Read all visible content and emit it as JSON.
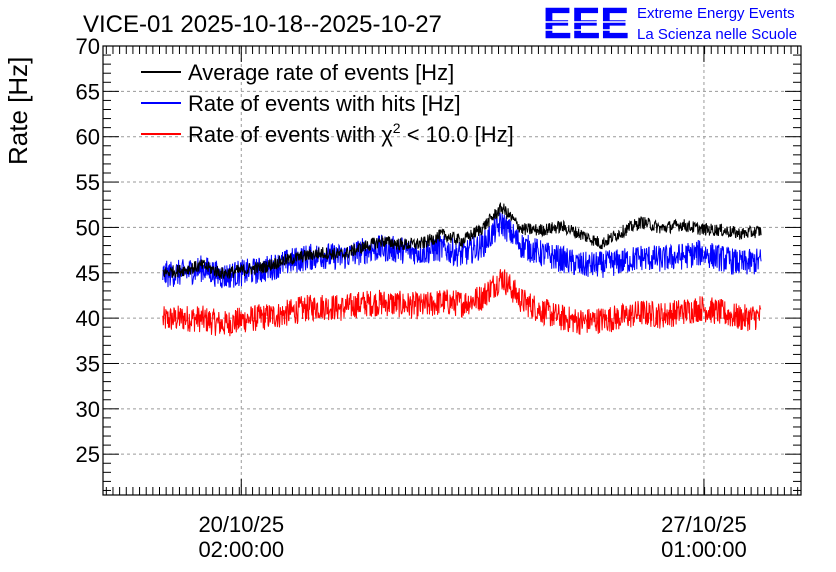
{
  "chart_data": {
    "type": "line",
    "title": "VICE-01 2025-10-18--2025-10-27",
    "xlabel": "",
    "ylabel": "Rate [Hz]",
    "ylim": [
      20.5,
      70
    ],
    "yticks": [
      25,
      30,
      35,
      40,
      45,
      50,
      55,
      60,
      65,
      70
    ],
    "x_range_days": [
      0,
      10.5
    ],
    "xticks": [
      {
        "day": 2.08,
        "date": "20/10/25",
        "time": "02:00:00"
      },
      {
        "day": 9.04,
        "date": "27/10/25",
        "time": "01:00:00"
      }
    ],
    "grid": true,
    "legend_position": "top-left",
    "legend": {
      "average": "Average rate of events [Hz]",
      "hits": "Rate of events with hits [Hz]",
      "chi_prefix": "Rate of events with ",
      "chi_symbol": "χ",
      "chi_sup": "2",
      "chi_suffix": " < 10.0 [Hz]"
    },
    "series": [
      {
        "name": "Average rate of events [Hz]",
        "color": "#000000",
        "x": [
          0.9,
          1.2,
          1.5,
          1.8,
          2.1,
          2.4,
          2.7,
          3.0,
          3.3,
          3.6,
          3.9,
          4.2,
          4.5,
          4.8,
          5.1,
          5.4,
          5.7,
          6.0,
          6.3,
          6.6,
          6.9,
          7.2,
          7.5,
          7.8,
          8.1,
          8.4,
          8.7,
          9.0,
          9.3,
          9.6,
          9.9
        ],
        "values": [
          45.0,
          45.3,
          45.8,
          44.9,
          45.3,
          45.6,
          46.3,
          46.8,
          47.2,
          47.0,
          47.8,
          48.5,
          48.1,
          48.2,
          49.2,
          48.5,
          49.9,
          52.2,
          49.8,
          49.7,
          50.1,
          49.2,
          48.2,
          49.5,
          50.6,
          49.9,
          50.3,
          49.8,
          49.7,
          49.3,
          49.6
        ],
        "noise": 0.7
      },
      {
        "name": "Rate of events with hits [Hz]",
        "color": "#0000ff",
        "x": [
          0.9,
          1.2,
          1.5,
          1.8,
          2.1,
          2.4,
          2.7,
          3.0,
          3.3,
          3.6,
          3.9,
          4.2,
          4.5,
          4.8,
          5.1,
          5.4,
          5.7,
          6.0,
          6.3,
          6.6,
          6.9,
          7.2,
          7.5,
          7.8,
          8.1,
          8.4,
          8.7,
          9.0,
          9.3,
          9.6,
          9.9
        ],
        "values": [
          44.8,
          45.0,
          45.5,
          44.6,
          45.0,
          45.3,
          46.0,
          46.6,
          46.9,
          46.7,
          47.4,
          47.7,
          47.5,
          47.3,
          47.7,
          47.0,
          48.0,
          50.5,
          48.0,
          47.1,
          46.5,
          45.8,
          45.9,
          46.2,
          46.7,
          46.5,
          46.8,
          47.2,
          46.6,
          46.0,
          46.3
        ],
        "noise": 1.5
      },
      {
        "name": "Rate of events with χ2 < 10.0 [Hz]",
        "color": "#ff0000",
        "x": [
          0.9,
          1.2,
          1.5,
          1.8,
          2.1,
          2.4,
          2.7,
          3.0,
          3.3,
          3.6,
          3.9,
          4.2,
          4.5,
          4.8,
          5.1,
          5.4,
          5.7,
          6.0,
          6.3,
          6.6,
          6.9,
          7.2,
          7.5,
          7.8,
          8.1,
          8.4,
          8.7,
          9.0,
          9.3,
          9.6,
          9.9
        ],
        "values": [
          39.8,
          40.0,
          39.9,
          39.3,
          39.8,
          40.1,
          40.4,
          41.0,
          41.3,
          41.1,
          41.6,
          41.7,
          41.5,
          41.3,
          41.8,
          41.6,
          42.3,
          44.5,
          41.9,
          40.8,
          40.0,
          39.6,
          39.8,
          40.1,
          40.6,
          40.3,
          40.7,
          41.1,
          40.6,
          40.0,
          40.2
        ],
        "noise": 1.5
      }
    ]
  },
  "logo": {
    "text": "EEE",
    "line1": "Extreme Energy Events",
    "line2": "La Scienza nelle Scuole",
    "color": "#0000ff"
  }
}
